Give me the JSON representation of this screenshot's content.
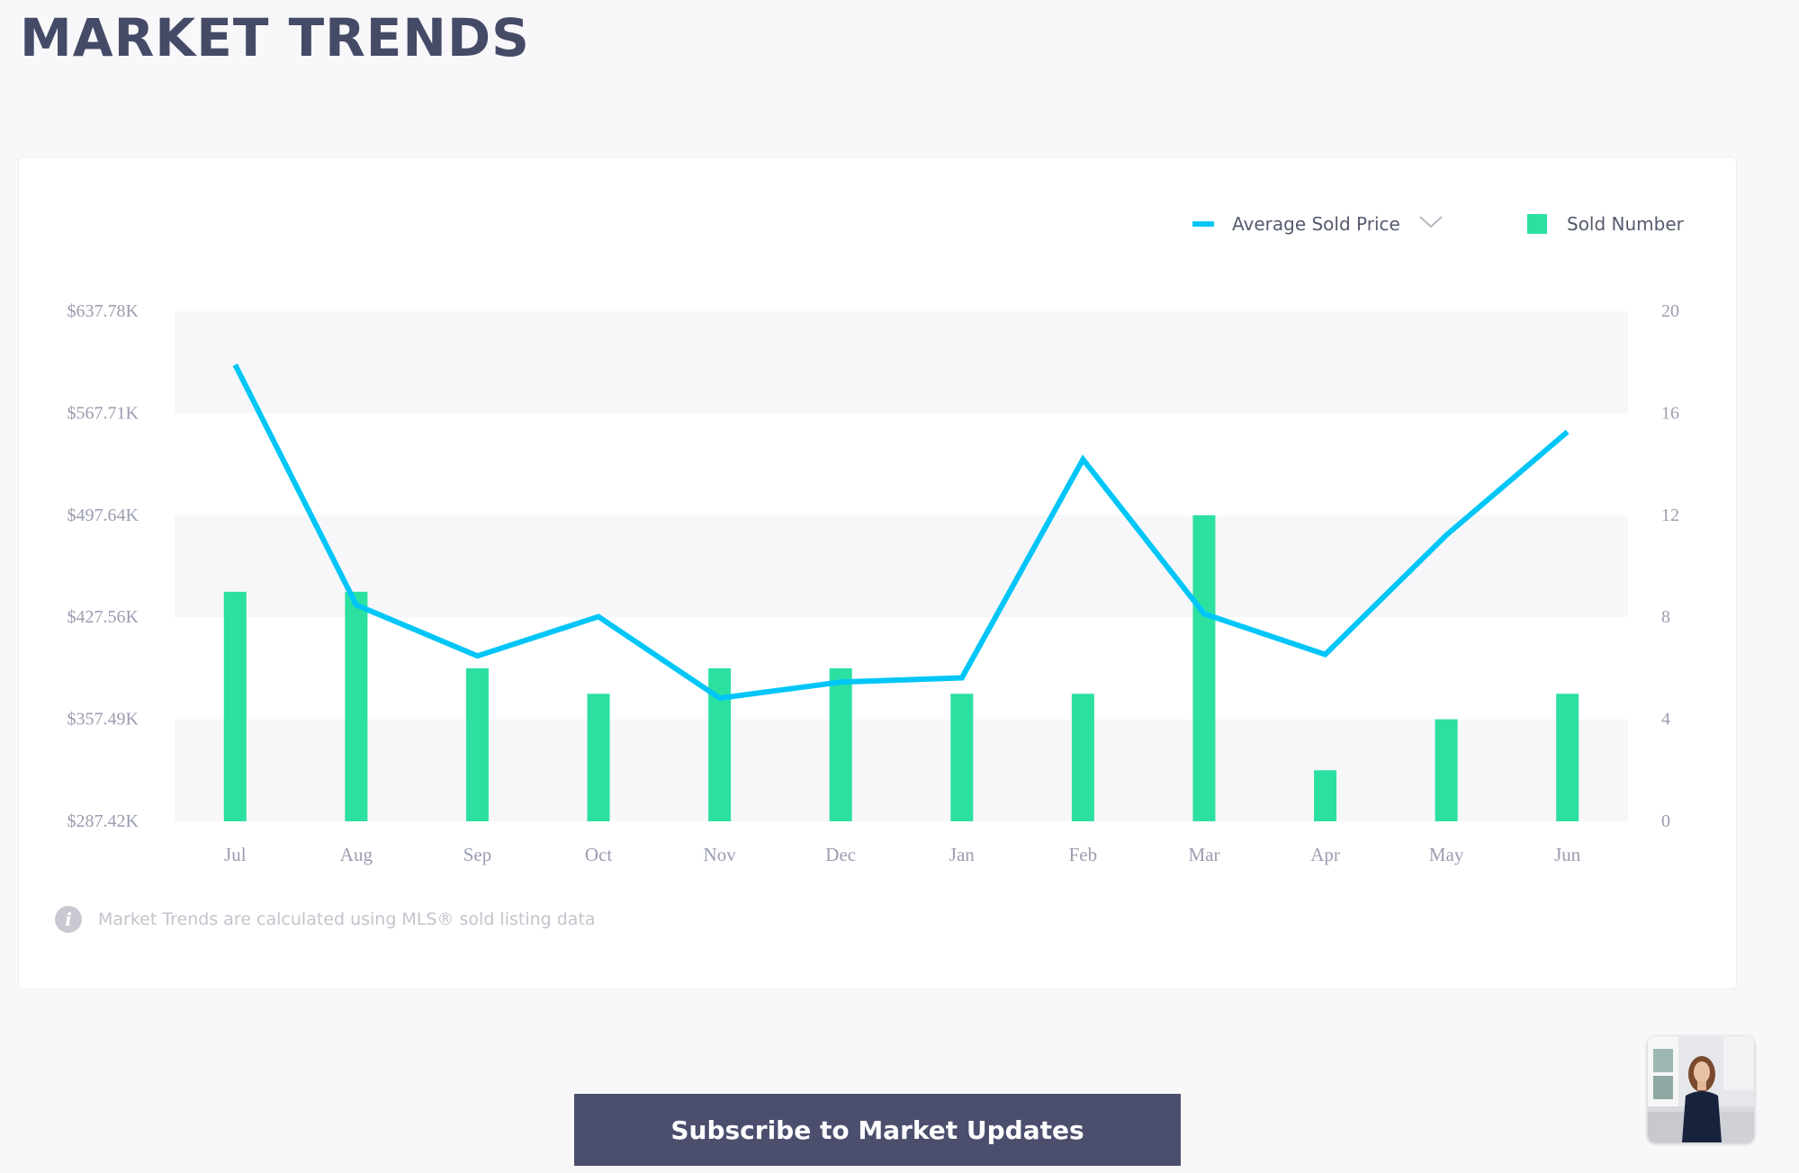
{
  "page": {
    "title": "MARKET TRENDS"
  },
  "legend": {
    "line_label": "Average Sold Price",
    "bar_label": "Sold Number",
    "line_color": "#00c6f8",
    "bar_color": "#2ce0a0"
  },
  "footnote": {
    "icon": "info-icon",
    "text": "Market Trends are calculated using MLS® sold listing data"
  },
  "subscribe": {
    "label": "Subscribe to Market Updates"
  },
  "agent": {
    "icon": "agent-photo"
  },
  "chart_data": {
    "type": "bar",
    "categories": [
      "Jul",
      "Aug",
      "Sep",
      "Oct",
      "Nov",
      "Dec",
      "Jan",
      "Feb",
      "Mar",
      "Apr",
      "May",
      "Jun"
    ],
    "series": [
      {
        "name": "Sold Number",
        "type": "bar",
        "axis": "right",
        "values": [
          9,
          9,
          6,
          5,
          6,
          6,
          5,
          5,
          12,
          2,
          4,
          5
        ]
      },
      {
        "name": "Average Sold Price",
        "type": "line",
        "axis": "left",
        "values": [
          601,
          436,
          401,
          428,
          372,
          383,
          386,
          536,
          430,
          402,
          484,
          555
        ]
      }
    ],
    "y_left": {
      "min": 287.42,
      "max": 637.78,
      "ticks": [
        "$637.78K",
        "$567.71K",
        "$497.64K",
        "$427.56K",
        "$357.49K",
        "$287.42K"
      ]
    },
    "y_right": {
      "min": 0,
      "max": 20,
      "ticks": [
        "20",
        "16",
        "12",
        "8",
        "4",
        "0"
      ]
    },
    "grid": "alternating horizontal bands",
    "legend_position": "top-right"
  }
}
